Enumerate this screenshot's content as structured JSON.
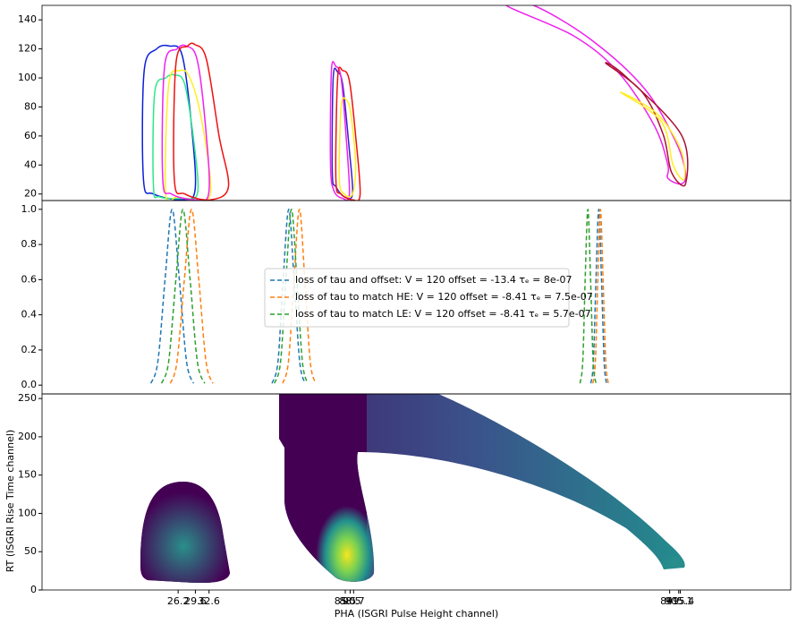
{
  "chart_data": [
    {
      "type": "contour",
      "xscale": "log",
      "xlim": [
        10,
        2000
      ],
      "ylim": [
        15.5,
        150
      ],
      "yticks": [
        20,
        40,
        60,
        80,
        100,
        120,
        140
      ],
      "series": [
        {
          "color": "#0a1fd8",
          "x": [
            20.5,
            20.6,
            22.5,
            24.6,
            27,
            29,
            29.5,
            27,
            22
          ],
          "values": [
            30,
            105,
            120,
            122,
            115,
            60,
            22,
            16,
            20
          ]
        },
        {
          "color": "#2be88a",
          "x": [
            22,
            22.2,
            24,
            25.5,
            27.5,
            29.5,
            30,
            27,
            23
          ],
          "values": [
            25,
            90,
            100,
            102,
            95,
            50,
            20,
            17,
            18
          ]
        },
        {
          "color": "#ffee22",
          "x": [
            24,
            24.5,
            26.5,
            28.5,
            31,
            33,
            30,
            26
          ],
          "values": [
            20,
            95,
            105,
            100,
            70,
            22,
            16,
            18
          ]
        },
        {
          "color": "#ee22ee",
          "x": [
            23.5,
            23.8,
            26,
            27.7,
            30,
            32,
            32.5,
            29.5,
            25
          ],
          "values": [
            30,
            108,
            120,
            122,
            112,
            60,
            20,
            16,
            20
          ]
        },
        {
          "color": "#ee1111",
          "x": [
            25.5,
            25.8,
            28,
            29.5,
            32,
            35,
            37.4,
            33,
            27.5
          ],
          "values": [
            30,
            110,
            122,
            123,
            113,
            60,
            25,
            16,
            20
          ]
        },
        {
          "color": "#3322cc",
          "x": [
            78,
            78.5,
            81,
            84,
            88,
            90,
            85,
            80
          ],
          "values": [
            35,
            100,
            104,
            95,
            50,
            20,
            18,
            25
          ]
        },
        {
          "color": "#ee22ee",
          "x": [
            77,
            77.5,
            80,
            83,
            86,
            88,
            84,
            79
          ],
          "values": [
            40,
            105,
            108,
            100,
            60,
            20,
            17,
            22
          ]
        },
        {
          "color": "#ee1111",
          "x": [
            80,
            81,
            84,
            88,
            92,
            95,
            90,
            83
          ],
          "values": [
            30,
            100,
            105,
            98,
            60,
            20,
            16,
            20
          ]
        },
        {
          "color": "#ffee22",
          "x": [
            82,
            83,
            86,
            89,
            92,
            90,
            85
          ],
          "values": [
            30,
            80,
            85,
            75,
            40,
            20,
            20
          ]
        },
        {
          "color": "#ee22ee",
          "x": [
            267,
            430,
            590,
            762,
            838,
            838,
            921,
            950,
            891,
            714,
            489,
            324
          ],
          "values": [
            150,
            129,
            104,
            67,
            40,
            31,
            27,
            34,
            55,
            92,
            126,
            150
          ]
        },
        {
          "color": "#aa1133",
          "x": [
            541,
            700,
            811,
            860,
            950,
            921,
            622
          ],
          "values": [
            110,
            90,
            61,
            35,
            27,
            61,
            101
          ]
        },
        {
          "color": "#ffee22",
          "x": [
            600,
            800,
            870,
            940,
            920,
            780
          ],
          "values": [
            90,
            70,
            40,
            30,
            50,
            75
          ]
        }
      ]
    },
    {
      "type": "line",
      "xscale": "log",
      "xlim": [
        10,
        2000
      ],
      "ylim": [
        -0.05,
        1.05
      ],
      "yticks": [
        {
          "value": 0,
          "label": "0.0"
        },
        {
          "value": 0.2,
          "label": "0.2"
        },
        {
          "value": 0.4,
          "label": "0.4"
        },
        {
          "value": 0.6,
          "label": "0.6"
        },
        {
          "value": 0.8,
          "label": "0.8"
        },
        {
          "value": 1,
          "label": "1.0"
        }
      ],
      "dashed": true,
      "series": [
        {
          "name": "loss of tau and offset: V = 120 offset = -13.4 τₑ = 8e-07",
          "color": "#1f77b4",
          "x": [
            21.6,
            22.7,
            23.9,
            25.1,
            26.4,
            27.8,
            29.2,
            null,
            50.9,
            53.1,
            55.1,
            57.3,
            59.5,
            61.9,
            64.3,
            null,
            486,
            495,
            504,
            514,
            524,
            534,
            543
          ],
          "values": [
            0.01,
            0.135,
            0.607,
            1,
            0.607,
            0.135,
            0.01,
            null,
            0.01,
            0.135,
            0.607,
            1,
            0.607,
            0.135,
            0.01,
            null,
            0.01,
            0.135,
            0.607,
            1,
            0.607,
            0.135,
            0.01
          ]
        },
        {
          "name": "loss of tau to match HE: V = 120 offset = -8.41 τₑ = 7.5e-07",
          "color": "#ff7f0e",
          "x": [
            24.8,
            26.0,
            27.4,
            28.8,
            30.3,
            31.9,
            33.5,
            null,
            54.9,
            57.2,
            59.5,
            61.8,
            64.2,
            66.7,
            69.3,
            null,
            493,
            502,
            511,
            520,
            530,
            540,
            550
          ],
          "values": [
            0.01,
            0.135,
            0.607,
            1,
            0.607,
            0.135,
            0.01,
            null,
            0.01,
            0.135,
            0.607,
            1,
            0.607,
            0.135,
            0.01,
            null,
            0.01,
            0.135,
            0.607,
            1,
            0.607,
            0.135,
            0.01
          ]
        },
        {
          "name": "loss of tau to match LE: V = 120 offset = -8.41 τₑ = 5.7e-07",
          "color": "#2ca02c",
          "x": [
            23.3,
            24.5,
            25.8,
            27.1,
            28.5,
            30.0,
            31.6,
            null,
            51.8,
            54.1,
            56.2,
            58.4,
            60.7,
            63.1,
            65.5,
            null,
            450,
            459,
            467,
            476,
            485,
            494,
            504
          ],
          "values": [
            0.01,
            0.135,
            0.607,
            1,
            0.607,
            0.135,
            0.01,
            null,
            0.01,
            0.135,
            0.607,
            1,
            0.607,
            0.135,
            0.01,
            null,
            0.01,
            0.135,
            0.607,
            1,
            0.607,
            0.135,
            0.01
          ]
        }
      ]
    },
    {
      "type": "density",
      "xscale": "log",
      "xlim": [
        10,
        2000
      ],
      "ylim": [
        0,
        256
      ],
      "yticks": [
        0,
        50,
        100,
        150,
        200,
        250
      ],
      "xticks": [
        26.2,
        29.6,
        32.6,
        85.5,
        88.5,
        90.7,
        849,
        905.1,
        915.4
      ],
      "xlabel": "PHA (ISGRI Pulse Height channel)",
      "ylabel": "RT (ISGRI Rise Time channel)"
    }
  ]
}
